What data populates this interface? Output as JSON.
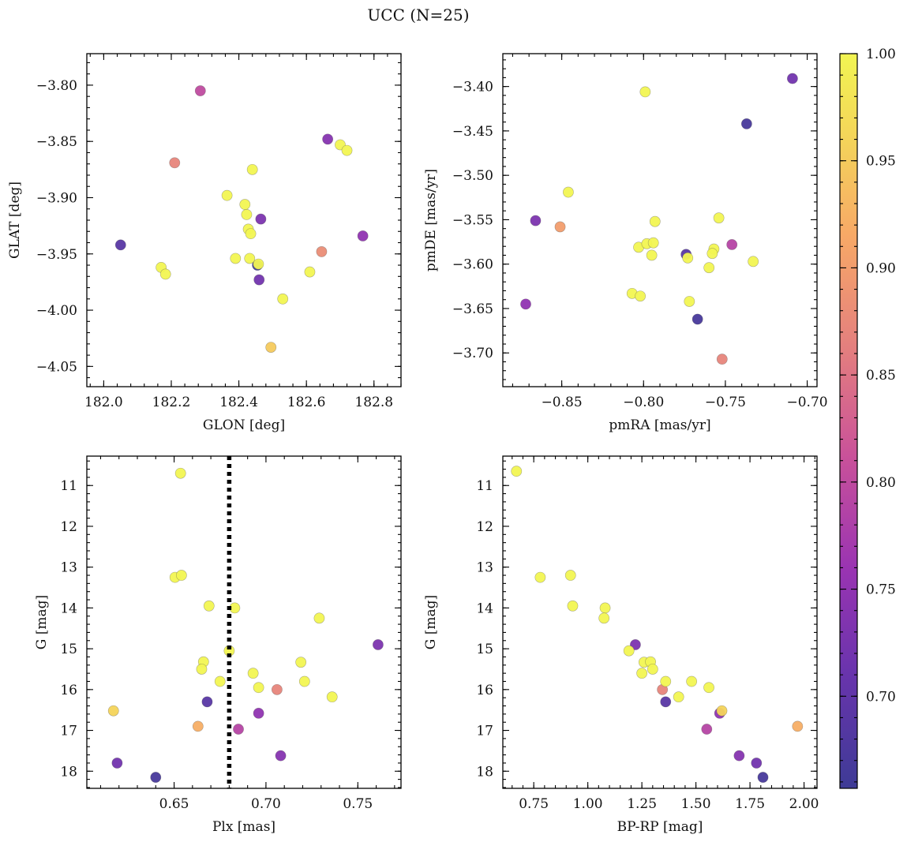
{
  "chart_data": {
    "suptitle": "UCC (N=25)",
    "colorbar": {
      "colormap": "plasma",
      "range": [
        0.657,
        1.0
      ],
      "ticks": [
        "0.70",
        "0.75",
        "0.80",
        "0.85",
        "0.90",
        "0.95",
        "1.00"
      ]
    },
    "panels": [
      {
        "type": "scatter",
        "xlabel": "GLON [deg]",
        "ylabel": "GLAT [deg]",
        "xlim": [
          181.95,
          182.88
        ],
        "ylim": [
          -4.068,
          -3.772
        ],
        "xticks": [
          "182.0",
          "182.2",
          "182.4",
          "182.6",
          "182.8"
        ],
        "yticks": [
          "−3.80",
          "−3.85",
          "−3.90",
          "−3.95",
          "−4.00",
          "−4.05"
        ],
        "points": [
          {
            "x": 182.286,
            "y": -3.805,
            "c": 0.8
          },
          {
            "x": 182.21,
            "y": -3.869,
            "c": 0.87
          },
          {
            "x": 182.663,
            "y": -3.848,
            "c": 0.74
          },
          {
            "x": 182.7,
            "y": -3.853,
            "c": 1.0
          },
          {
            "x": 182.72,
            "y": -3.858,
            "c": 1.0
          },
          {
            "x": 182.44,
            "y": -3.875,
            "c": 1.0
          },
          {
            "x": 182.365,
            "y": -3.898,
            "c": 1.0
          },
          {
            "x": 182.418,
            "y": -3.906,
            "c": 1.0
          },
          {
            "x": 182.423,
            "y": -3.915,
            "c": 1.0
          },
          {
            "x": 182.465,
            "y": -3.919,
            "c": 0.73
          },
          {
            "x": 182.428,
            "y": -3.928,
            "c": 1.0
          },
          {
            "x": 182.435,
            "y": -3.932,
            "c": 1.0
          },
          {
            "x": 182.767,
            "y": -3.934,
            "c": 0.75
          },
          {
            "x": 182.05,
            "y": -3.942,
            "c": 0.69
          },
          {
            "x": 182.645,
            "y": -3.948,
            "c": 0.88
          },
          {
            "x": 182.39,
            "y": -3.954,
            "c": 1.0
          },
          {
            "x": 182.432,
            "y": -3.954,
            "c": 1.0
          },
          {
            "x": 182.455,
            "y": -3.96,
            "c": 0.66
          },
          {
            "x": 182.458,
            "y": -3.959,
            "c": 1.0
          },
          {
            "x": 182.17,
            "y": -3.962,
            "c": 1.0
          },
          {
            "x": 182.183,
            "y": -3.968,
            "c": 1.0
          },
          {
            "x": 182.61,
            "y": -3.966,
            "c": 1.0
          },
          {
            "x": 182.46,
            "y": -3.973,
            "c": 0.72
          },
          {
            "x": 182.53,
            "y": -3.99,
            "c": 1.0
          },
          {
            "x": 182.495,
            "y": -4.033,
            "c": 0.95
          }
        ]
      },
      {
        "type": "scatter",
        "xlabel": "pmRA [mas/yr]",
        "ylabel": "pmDE [mas/yr]",
        "xlim": [
          -0.886,
          -0.694
        ],
        "ylim": [
          -3.738,
          -3.363
        ],
        "xticks": [
          "−0.85",
          "−0.80",
          "−0.75",
          "−0.70"
        ],
        "yticks": [
          "−3.40",
          "−3.45",
          "−3.50",
          "−3.55",
          "−3.60",
          "−3.65",
          "−3.70"
        ],
        "points": [
          {
            "x": -0.709,
            "y": -3.391,
            "c": 0.72
          },
          {
            "x": -0.799,
            "y": -3.406,
            "c": 1.0
          },
          {
            "x": -0.737,
            "y": -3.442,
            "c": 0.67
          },
          {
            "x": -0.846,
            "y": -3.519,
            "c": 1.0
          },
          {
            "x": -0.866,
            "y": -3.551,
            "c": 0.73
          },
          {
            "x": -0.851,
            "y": -3.558,
            "c": 0.9
          },
          {
            "x": -0.793,
            "y": -3.552,
            "c": 1.0
          },
          {
            "x": -0.754,
            "y": -3.548,
            "c": 1.0
          },
          {
            "x": -0.803,
            "y": -3.581,
            "c": 1.0
          },
          {
            "x": -0.798,
            "y": -3.577,
            "c": 1.0
          },
          {
            "x": -0.794,
            "y": -3.576,
            "c": 1.0
          },
          {
            "x": -0.757,
            "y": -3.583,
            "c": 1.0
          },
          {
            "x": -0.758,
            "y": -3.588,
            "c": 1.0
          },
          {
            "x": -0.746,
            "y": -3.578,
            "c": 0.79
          },
          {
            "x": -0.795,
            "y": -3.59,
            "c": 1.0
          },
          {
            "x": -0.774,
            "y": -3.589,
            "c": 0.69
          },
          {
            "x": -0.773,
            "y": -3.593,
            "c": 1.0
          },
          {
            "x": -0.733,
            "y": -3.597,
            "c": 1.0
          },
          {
            "x": -0.76,
            "y": -3.604,
            "c": 1.0
          },
          {
            "x": -0.807,
            "y": -3.633,
            "c": 1.0
          },
          {
            "x": -0.802,
            "y": -3.636,
            "c": 1.0
          },
          {
            "x": -0.772,
            "y": -3.642,
            "c": 1.0
          },
          {
            "x": -0.872,
            "y": -3.645,
            "c": 0.75
          },
          {
            "x": -0.767,
            "y": -3.662,
            "c": 0.67
          },
          {
            "x": -0.752,
            "y": -3.707,
            "c": 0.87
          }
        ]
      },
      {
        "type": "scatter",
        "xlabel": "Plx [mas]",
        "ylabel": "G [mag]",
        "xlim": [
          0.6025,
          0.7735
        ],
        "ylim": [
          18.42,
          10.28
        ],
        "y_inverted": true,
        "xticks": [
          "0.65",
          "0.70",
          "0.75"
        ],
        "yticks": [
          "11",
          "12",
          "13",
          "14",
          "15",
          "16",
          "17",
          "18"
        ],
        "vline": {
          "x": 0.68,
          "style": "dotted",
          "color": "#000000"
        },
        "points": [
          {
            "x": 0.6535,
            "y": 10.7,
            "c": 1.0
          },
          {
            "x": 0.6505,
            "y": 13.25,
            "c": 1.0
          },
          {
            "x": 0.654,
            "y": 13.2,
            "c": 1.0
          },
          {
            "x": 0.669,
            "y": 13.95,
            "c": 1.0
          },
          {
            "x": 0.683,
            "y": 14.0,
            "c": 1.0
          },
          {
            "x": 0.729,
            "y": 14.25,
            "c": 1.0
          },
          {
            "x": 0.761,
            "y": 14.9,
            "c": 0.73
          },
          {
            "x": 0.68,
            "y": 15.05,
            "c": 1.0
          },
          {
            "x": 0.666,
            "y": 15.32,
            "c": 1.0
          },
          {
            "x": 0.719,
            "y": 15.33,
            "c": 1.0
          },
          {
            "x": 0.665,
            "y": 15.5,
            "c": 1.0
          },
          {
            "x": 0.693,
            "y": 15.6,
            "c": 1.0
          },
          {
            "x": 0.675,
            "y": 15.8,
            "c": 1.0
          },
          {
            "x": 0.721,
            "y": 15.8,
            "c": 1.0
          },
          {
            "x": 0.696,
            "y": 15.95,
            "c": 1.0
          },
          {
            "x": 0.706,
            "y": 16.0,
            "c": 0.87
          },
          {
            "x": 0.736,
            "y": 16.18,
            "c": 1.0
          },
          {
            "x": 0.668,
            "y": 16.3,
            "c": 0.69
          },
          {
            "x": 0.617,
            "y": 16.52,
            "c": 0.96
          },
          {
            "x": 0.696,
            "y": 16.58,
            "c": 0.75
          },
          {
            "x": 0.663,
            "y": 16.9,
            "c": 0.92
          },
          {
            "x": 0.685,
            "y": 16.97,
            "c": 0.79
          },
          {
            "x": 0.708,
            "y": 17.62,
            "c": 0.74
          },
          {
            "x": 0.619,
            "y": 17.8,
            "c": 0.72
          },
          {
            "x": 0.64,
            "y": 18.15,
            "c": 0.67
          }
        ]
      },
      {
        "type": "scatter",
        "xlabel": "BP-RP [mag]",
        "ylabel": "G [mag]",
        "xlim": [
          0.607,
          2.06
        ],
        "ylim": [
          18.42,
          10.28
        ],
        "y_inverted": true,
        "xticks": [
          "0.75",
          "1.00",
          "1.25",
          "1.50",
          "1.75",
          "2.00"
        ],
        "yticks": [
          "11",
          "12",
          "13",
          "14",
          "15",
          "16",
          "17",
          "18"
        ],
        "points": [
          {
            "x": 0.67,
            "y": 10.65,
            "c": 1.0
          },
          {
            "x": 0.78,
            "y": 13.25,
            "c": 1.0
          },
          {
            "x": 0.92,
            "y": 13.2,
            "c": 1.0
          },
          {
            "x": 0.93,
            "y": 13.95,
            "c": 1.0
          },
          {
            "x": 1.08,
            "y": 14.0,
            "c": 1.0
          },
          {
            "x": 1.075,
            "y": 14.25,
            "c": 1.0
          },
          {
            "x": 1.22,
            "y": 14.9,
            "c": 0.73
          },
          {
            "x": 1.19,
            "y": 15.05,
            "c": 1.0
          },
          {
            "x": 1.26,
            "y": 15.33,
            "c": 1.0
          },
          {
            "x": 1.29,
            "y": 15.32,
            "c": 1.0
          },
          {
            "x": 1.3,
            "y": 15.5,
            "c": 1.0
          },
          {
            "x": 1.25,
            "y": 15.6,
            "c": 1.0
          },
          {
            "x": 1.36,
            "y": 15.8,
            "c": 1.0
          },
          {
            "x": 1.48,
            "y": 15.8,
            "c": 1.0
          },
          {
            "x": 1.56,
            "y": 15.95,
            "c": 1.0
          },
          {
            "x": 1.345,
            "y": 16.0,
            "c": 0.87
          },
          {
            "x": 1.42,
            "y": 16.18,
            "c": 1.0
          },
          {
            "x": 1.36,
            "y": 16.3,
            "c": 0.69
          },
          {
            "x": 1.61,
            "y": 16.58,
            "c": 0.75
          },
          {
            "x": 1.62,
            "y": 16.52,
            "c": 0.96
          },
          {
            "x": 1.97,
            "y": 16.9,
            "c": 0.92
          },
          {
            "x": 1.55,
            "y": 16.97,
            "c": 0.79
          },
          {
            "x": 1.7,
            "y": 17.62,
            "c": 0.74
          },
          {
            "x": 1.78,
            "y": 17.8,
            "c": 0.72
          },
          {
            "x": 1.81,
            "y": 18.15,
            "c": 0.67
          }
        ]
      }
    ]
  }
}
